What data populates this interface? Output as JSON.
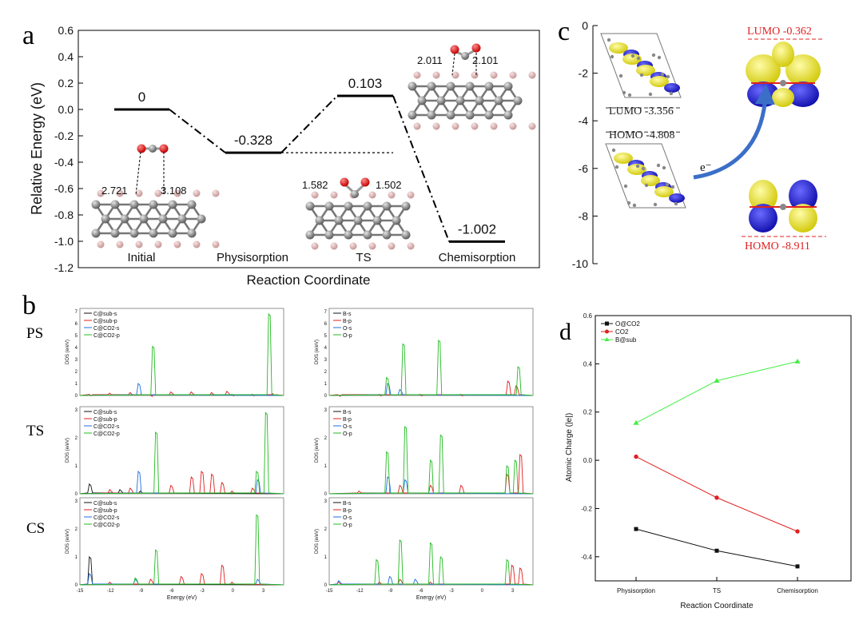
{
  "panel_labels": {
    "a": "a",
    "b": "b",
    "c": "c",
    "d": "d"
  },
  "colors": {
    "red": "#e02020",
    "blue": "#1f6fe0",
    "green": "#22bb22",
    "black": "#111111",
    "darkred": "#c0392b",
    "yellow": "#f2ee3a",
    "orb_blue": "#1a16e6",
    "arrow": "#3b6fc7",
    "light_green": "#44ee44"
  },
  "chart_data": [
    {
      "id": "a",
      "type": "line",
      "title": "",
      "xlabel": "Reaction Coordinate",
      "ylabel": "Relative Energy (eV)",
      "ylim": [
        -1.2,
        0.6
      ],
      "yticks": [
        "0.6",
        "0.4",
        "0.2",
        "0.0",
        "-0.2",
        "-0.4",
        "-0.6",
        "-0.8",
        "-1.0",
        "-1.2"
      ],
      "categories": [
        "Initial",
        "Physisorption",
        "TS",
        "Chemisorption"
      ],
      "values": [
        0,
        -0.328,
        0.103,
        -1.002
      ],
      "value_labels": [
        "0",
        "-0.328",
        "0.103",
        "-1.002"
      ],
      "bond_labels": {
        "initial": [
          "2.721",
          "3.108"
        ],
        "ts": [
          "1.582",
          "1.502"
        ],
        "chemisorption": [
          "2.011",
          "2.101"
        ]
      }
    },
    {
      "id": "b",
      "type": "line",
      "xlabel": "Energy (eV)",
      "ylabel": "DOS (e/eV)",
      "xlim": [
        -15,
        5
      ],
      "xticks": [
        "-15",
        "-12",
        "-9",
        "-6",
        "-3",
        "0",
        "3"
      ],
      "row_labels": [
        "PS",
        "TS",
        "CS"
      ],
      "rows": [
        {
          "label": "PS",
          "ylim": [
            0,
            7
          ],
          "yticks": [
            "0",
            "1",
            "2",
            "3",
            "4",
            "5",
            "6",
            "7"
          ],
          "left": {
            "legend": [
              "C@sub-s",
              "C@sub-p",
              "C@CO2-s",
              "C@CO2-p"
            ],
            "series": [
              {
                "name": "C@sub-p",
                "color": "red",
                "points": [
                  [
                    -14,
                    0.1
                  ],
                  [
                    -12,
                    0.2
                  ],
                  [
                    -10,
                    0.25
                  ],
                  [
                    -8,
                    0.05
                  ],
                  [
                    -6,
                    0.3
                  ],
                  [
                    -4,
                    0.3
                  ],
                  [
                    -2,
                    0.25
                  ],
                  [
                    -0.5,
                    0.35
                  ],
                  [
                    0,
                    0.1
                  ],
                  [
                    2,
                    0.1
                  ],
                  [
                    4,
                    0.15
                  ]
                ]
              },
              {
                "name": "C@CO2-s",
                "color": "blue",
                "points": [
                  [
                    -9.2,
                    1.0
                  ]
                ]
              },
              {
                "name": "C@CO2-p",
                "color": "green",
                "points": [
                  [
                    -7.8,
                    4.1
                  ],
                  [
                    3.6,
                    6.8
                  ]
                ]
              }
            ]
          },
          "right": {
            "legend": [
              "B-s",
              "B-p",
              "O-s",
              "O-p"
            ],
            "series": [
              {
                "name": "B-p",
                "color": "red",
                "points": [
                  [
                    -14,
                    0.05
                  ],
                  [
                    -10,
                    0.1
                  ],
                  [
                    -6,
                    0.1
                  ],
                  [
                    -2,
                    0.1
                  ],
                  [
                    2.6,
                    1.2
                  ],
                  [
                    3.4,
                    0.8
                  ]
                ]
              },
              {
                "name": "O-s",
                "color": "blue",
                "points": [
                  [
                    -9.2,
                    1.0
                  ],
                  [
                    -8,
                    0.5
                  ]
                ]
              },
              {
                "name": "O-p",
                "color": "green",
                "points": [
                  [
                    -9.3,
                    1.5
                  ],
                  [
                    -7.7,
                    4.3
                  ],
                  [
                    -4.2,
                    4.6
                  ],
                  [
                    3.6,
                    2.4
                  ]
                ]
              }
            ]
          }
        },
        {
          "label": "TS",
          "ylim": [
            0,
            3
          ],
          "yticks": [
            "0",
            "1",
            "2",
            "3"
          ],
          "left": {
            "legend": [
              "C@sub-s",
              "C@sub-p",
              "C@CO2-s",
              "C@CO2-p"
            ],
            "series": [
              {
                "name": "C@sub-s",
                "color": "black",
                "points": [
                  [
                    -14,
                    0.35
                  ],
                  [
                    -11,
                    0.15
                  ],
                  [
                    -9,
                    0.1
                  ]
                ]
              },
              {
                "name": "C@sub-p",
                "color": "red",
                "points": [
                  [
                    -12,
                    0.15
                  ],
                  [
                    -10,
                    0.2
                  ],
                  [
                    -6,
                    0.3
                  ],
                  [
                    -4,
                    0.6
                  ],
                  [
                    -3,
                    0.8
                  ],
                  [
                    -2,
                    0.7
                  ],
                  [
                    -1,
                    0.4
                  ],
                  [
                    0,
                    0.1
                  ],
                  [
                    2,
                    0.2
                  ]
                ]
              },
              {
                "name": "C@CO2-s",
                "color": "blue",
                "points": [
                  [
                    -9.2,
                    0.8
                  ],
                  [
                    2.5,
                    0.5
                  ]
                ]
              },
              {
                "name": "C@CO2-p",
                "color": "green",
                "points": [
                  [
                    -7.5,
                    2.2
                  ],
                  [
                    2.4,
                    0.8
                  ],
                  [
                    3.3,
                    2.9
                  ]
                ]
              }
            ]
          },
          "right": {
            "legend": [
              "B-s",
              "B-p",
              "O-s",
              "O-p"
            ],
            "series": [
              {
                "name": "B-p",
                "color": "red",
                "points": [
                  [
                    -12,
                    0.1
                  ],
                  [
                    -8,
                    0.3
                  ],
                  [
                    -5,
                    0.3
                  ],
                  [
                    -2,
                    0.3
                  ],
                  [
                    2.5,
                    0.7
                  ],
                  [
                    3.8,
                    1.4
                  ]
                ]
              },
              {
                "name": "O-s",
                "color": "blue",
                "points": [
                  [
                    -9.2,
                    0.6
                  ],
                  [
                    -7.5,
                    0.5
                  ]
                ]
              },
              {
                "name": "O-p",
                "color": "green",
                "points": [
                  [
                    -9.3,
                    1.5
                  ],
                  [
                    -7.5,
                    2.4
                  ],
                  [
                    -5,
                    1.2
                  ],
                  [
                    -4,
                    2.1
                  ],
                  [
                    2.5,
                    1.0
                  ],
                  [
                    3.3,
                    1.2
                  ]
                ]
              }
            ]
          }
        },
        {
          "label": "CS",
          "ylim": [
            0,
            3
          ],
          "yticks": [
            "0",
            "1",
            "2",
            "3"
          ],
          "left": {
            "legend": [
              "C@sub-s",
              "C@sub-p",
              "C@CO2-s",
              "C@CO2-p"
            ],
            "series": [
              {
                "name": "C@sub-s",
                "color": "black",
                "points": [
                  [
                    -14,
                    1.0
                  ]
                ]
              },
              {
                "name": "C@sub-p",
                "color": "red",
                "points": [
                  [
                    -12,
                    0.1
                  ],
                  [
                    -8,
                    0.2
                  ],
                  [
                    -5,
                    0.3
                  ],
                  [
                    -3,
                    0.4
                  ],
                  [
                    -1,
                    0.7
                  ],
                  [
                    0,
                    0.1
                  ]
                ]
              },
              {
                "name": "C@CO2-s",
                "color": "blue",
                "points": [
                  [
                    -14,
                    0.4
                  ],
                  [
                    -9.5,
                    0.2
                  ],
                  [
                    2.5,
                    0.2
                  ]
                ]
              },
              {
                "name": "C@CO2-p",
                "color": "green",
                "points": [
                  [
                    -9.5,
                    0.25
                  ],
                  [
                    -7.5,
                    1.25
                  ],
                  [
                    2.4,
                    2.5
                  ]
                ]
              }
            ]
          },
          "right": {
            "legend": [
              "B-s",
              "B-p",
              "O-s",
              "O-p"
            ],
            "series": [
              {
                "name": "B-p",
                "color": "red",
                "points": [
                  [
                    -14,
                    0.1
                  ],
                  [
                    -10,
                    0.1
                  ],
                  [
                    -8,
                    0.2
                  ],
                  [
                    -5,
                    0.1
                  ],
                  [
                    3,
                    0.7
                  ],
                  [
                    3.8,
                    0.6
                  ]
                ]
              },
              {
                "name": "O-s",
                "color": "blue",
                "points": [
                  [
                    -14,
                    0.15
                  ],
                  [
                    -9,
                    0.3
                  ],
                  [
                    -6.5,
                    0.2
                  ]
                ]
              },
              {
                "name": "O-p",
                "color": "green",
                "points": [
                  [
                    -10.3,
                    0.9
                  ],
                  [
                    -8,
                    1.6
                  ],
                  [
                    -5,
                    1.5
                  ],
                  [
                    -4,
                    1.0
                  ],
                  [
                    2.5,
                    0.9
                  ]
                ]
              }
            ]
          }
        }
      ]
    },
    {
      "id": "c",
      "type": "scatter",
      "ylim": [
        -10,
        0
      ],
      "yticks": [
        "0",
        "-2",
        "-4",
        "-6",
        "-8",
        "-10"
      ],
      "levels": [
        {
          "label": "LUMO -3.356",
          "value": -3.356
        },
        {
          "label": "HOMO -4.808",
          "value": -4.808
        },
        {
          "label": "LUMO -0.362",
          "value": -0.362
        },
        {
          "label": "HOMO -8.911",
          "value": -8.911
        }
      ],
      "transfer_label": "e⁻"
    },
    {
      "id": "d",
      "type": "line",
      "xlabel": "Reaction Coordinate",
      "ylabel": "Atomic Charge (|e|)",
      "ylim": [
        -0.5,
        0.6
      ],
      "yticks": [
        "0.6",
        "0.4",
        "0.2",
        "0.0",
        "-0.2",
        "-0.4"
      ],
      "categories": [
        "Physisorption",
        "TS",
        "Chemisorption"
      ],
      "series": [
        {
          "name": "O@CO2",
          "color": "black",
          "values": [
            -0.285,
            -0.375,
            -0.44
          ]
        },
        {
          "name": "CO2",
          "color": "red",
          "values": [
            0.015,
            -0.155,
            -0.295
          ]
        },
        {
          "name": "B@sub",
          "color": "light_green",
          "values": [
            0.155,
            0.33,
            0.41
          ]
        }
      ]
    }
  ]
}
